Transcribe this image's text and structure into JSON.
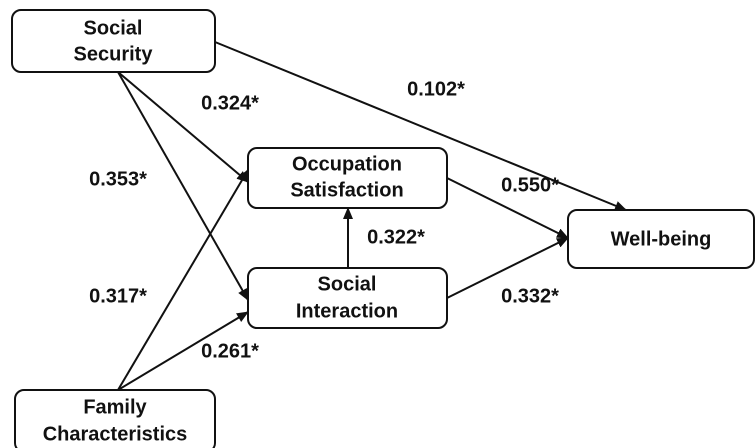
{
  "nodes": [
    {
      "label": [
        "Social",
        "Security"
      ]
    },
    {
      "label": [
        "Occupation",
        "Satisfaction"
      ]
    },
    {
      "label": [
        "Social",
        "Interaction"
      ]
    },
    {
      "label": [
        "Well-being"
      ]
    },
    {
      "label": [
        "Family",
        "Characteristics"
      ]
    }
  ],
  "edges": [
    {
      "label": "0.324*"
    },
    {
      "label": "0.353*"
    },
    {
      "label": "0.102*"
    },
    {
      "label": "0.317*"
    },
    {
      "label": "0.261*"
    },
    {
      "label": "0.550*"
    },
    {
      "label": "0.332*"
    },
    {
      "label": "0.322*"
    }
  ]
}
